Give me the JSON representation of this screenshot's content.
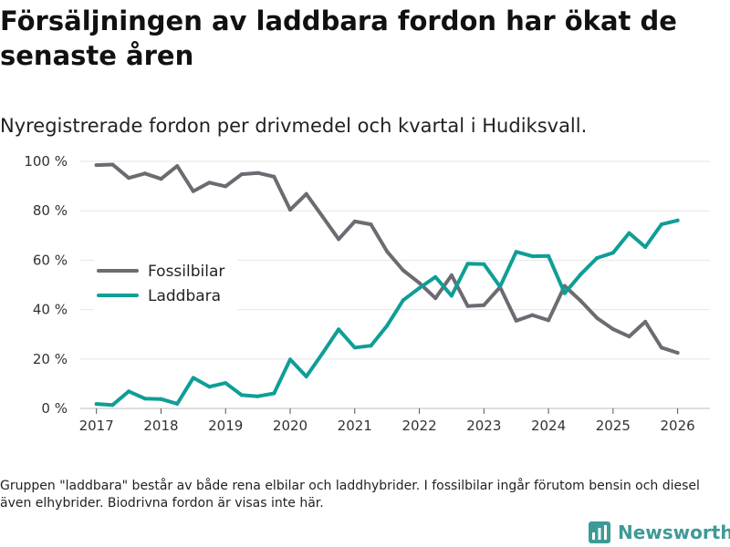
{
  "header": {
    "title": "Försäljningen av laddbara fordon har ökat de senaste åren",
    "subtitle": "Nyregistrerade fordon per drivmedel och kvartal i Hudiksvall."
  },
  "footer": {
    "note": "Gruppen \"laddbara\" består av både rena elbilar och laddhybrider. I fossilbilar ingår förutom bensin och diesel även elhybrider. Biodrivna fordon är visas inte här.",
    "brand": "Newsworthy"
  },
  "colors": {
    "fossil": "#6e6a72",
    "laddbara": "#0f9e96",
    "grid": "#e6e6e6",
    "brand": "#3d9a97"
  },
  "chart_data": {
    "type": "line",
    "title": "Nyregistrerade fordon per drivmedel och kvartal i Hudiksvall.",
    "xlabel": "",
    "ylabel": "",
    "ylim": [
      0,
      100
    ],
    "xlim": [
      2016.75,
      2026.5
    ],
    "y_ticks": [
      0,
      20,
      40,
      60,
      80,
      100
    ],
    "y_tick_labels": [
      "0 %",
      "20 %",
      "40 %",
      "60 %",
      "80 %",
      "100 %"
    ],
    "x_ticks": [
      2017,
      2018,
      2019,
      2020,
      2021,
      2022,
      2023,
      2024,
      2025,
      2026
    ],
    "x_tick_labels": [
      "2017",
      "2018",
      "2019",
      "2020",
      "2021",
      "2022",
      "2023",
      "2024",
      "2025",
      "2026"
    ],
    "grid": true,
    "legend_position": "middle-left",
    "x": [
      2017.0,
      2017.25,
      2017.5,
      2017.75,
      2018.0,
      2018.25,
      2018.5,
      2018.75,
      2019.0,
      2019.25,
      2019.5,
      2019.75,
      2020.0,
      2020.25,
      2020.5,
      2020.75,
      2021.0,
      2021.25,
      2021.5,
      2021.75,
      2022.0,
      2022.25,
      2022.5,
      2022.75,
      2023.0,
      2023.25,
      2023.5,
      2023.75,
      2024.0,
      2024.25,
      2024.5,
      2024.75,
      2025.0,
      2025.25,
      2025.5,
      2025.75,
      2026.0
    ],
    "series": [
      {
        "name": "Fossilbilar",
        "color": "#6e6a72",
        "values": [
          98.5,
          98.7,
          93.3,
          95.1,
          92.9,
          98.1,
          87.9,
          91.4,
          89.9,
          94.8,
          95.3,
          93.8,
          80.4,
          86.8,
          77.7,
          68.5,
          75.7,
          74.5,
          63.5,
          55.9,
          50.8,
          44.6,
          53.9,
          41.4,
          41.8,
          49.1,
          35.5,
          37.8,
          35.7,
          49.6,
          43.5,
          36.6,
          32.1,
          29.1,
          35.1,
          24.6,
          22.5
        ]
      },
      {
        "name": "Laddbara",
        "color": "#0f9e96",
        "values": [
          1.8,
          1.4,
          6.9,
          4.0,
          3.8,
          1.9,
          12.4,
          8.8,
          10.3,
          5.4,
          4.9,
          6.1,
          19.8,
          12.9,
          22.3,
          32.0,
          24.6,
          25.4,
          33.5,
          43.8,
          48.7,
          53.2,
          45.6,
          58.6,
          58.4,
          49.3,
          63.4,
          61.6,
          61.7,
          46.6,
          54.3,
          60.9,
          63.0,
          71.0,
          65.3,
          74.5,
          76.1
        ]
      }
    ]
  }
}
